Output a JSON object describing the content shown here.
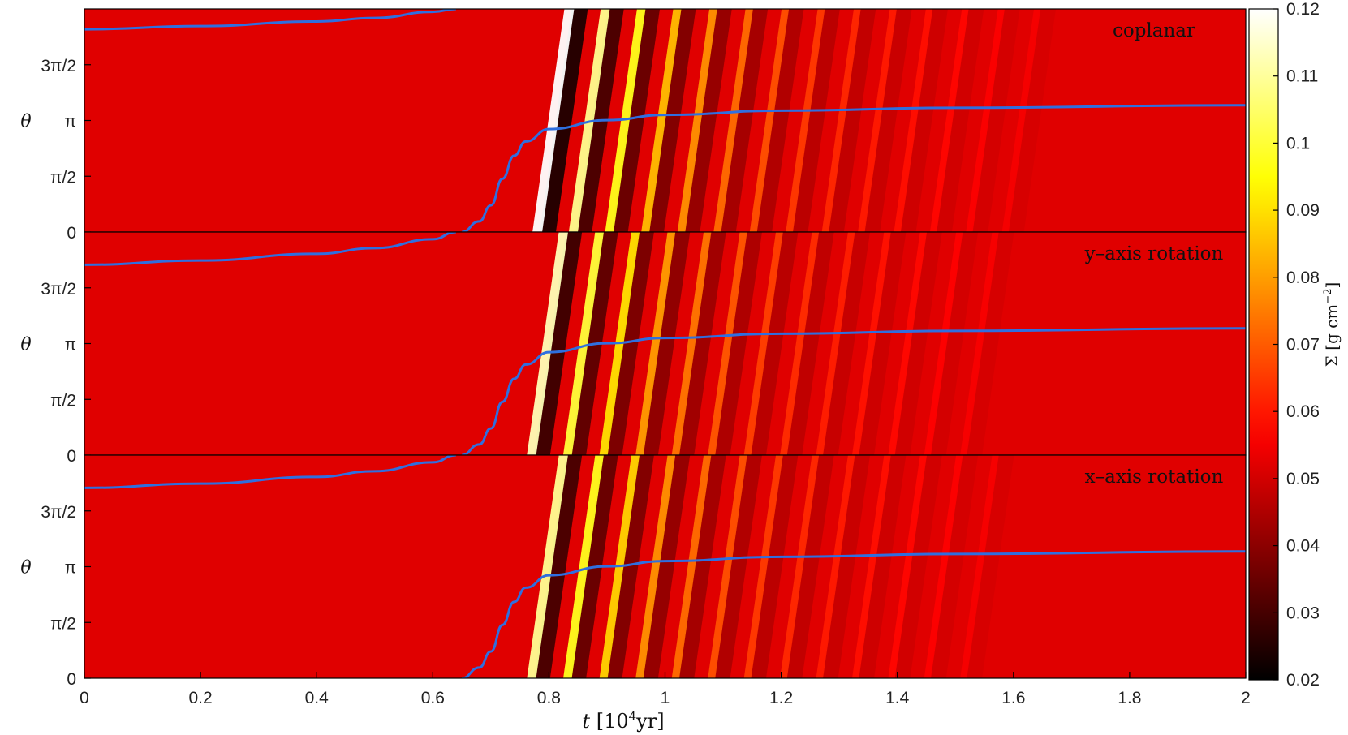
{
  "chart_data": {
    "type": "heatmap",
    "xlabel": "t [10^4 yr]",
    "xlabel_parts": {
      "var": "t",
      "open": "[10",
      "exp": "4",
      "unit": "yr]"
    },
    "ylabel": "θ",
    "x_range": [
      0,
      2
    ],
    "x_ticks": [
      0,
      0.2,
      0.4,
      0.6,
      0.8,
      1,
      1.2,
      1.4,
      1.6,
      1.8,
      2
    ],
    "x_tick_labels": [
      "0",
      "0.2",
      "0.4",
      "0.6",
      "0.8",
      "1",
      "1.2",
      "1.4",
      "1.6",
      "1.8",
      "2"
    ],
    "y_range": [
      0,
      6.2832
    ],
    "y_ticks": [
      0,
      1.5708,
      3.1416,
      4.7124
    ],
    "y_tick_labels": [
      "0",
      "π/2",
      "π",
      "3π/2"
    ],
    "colorbar": {
      "label": "Σ [g cm^-2]",
      "label_parts": {
        "sym": "Σ",
        "open": "[g cm",
        "exp": "−2",
        "close": "]"
      },
      "range": [
        0.02,
        0.12
      ],
      "ticks": [
        0.02,
        0.03,
        0.04,
        0.05,
        0.06,
        0.07,
        0.08,
        0.09,
        0.1,
        0.11,
        0.12
      ],
      "tick_labels": [
        "0.02",
        "0.03",
        "0.04",
        "0.05",
        "0.06",
        "0.07",
        "0.08",
        "0.09",
        "0.1",
        "0.11",
        "0.12"
      ],
      "colormap": "hot"
    },
    "background_sigma": 0.052,
    "curve_color": "#2f6fe0",
    "panels": [
      {
        "title": "coplanar",
        "wave_onset_t": 0.78,
        "wave_amplitude": 1.0,
        "trajectory": {
          "t": [
            0,
            0.2,
            0.4,
            0.5,
            0.6,
            0.64,
            0.65,
            0.68,
            0.7,
            0.72,
            0.74,
            0.76,
            0.8,
            0.9,
            1.0,
            1.2,
            1.5,
            2.0
          ],
          "theta": [
            5.71,
            5.8,
            5.93,
            6.03,
            6.2,
            6.283,
            0.0,
            0.3,
            0.75,
            1.5,
            2.15,
            2.55,
            2.9,
            3.15,
            3.3,
            3.42,
            3.5,
            3.57
          ]
        }
      },
      {
        "title": "y–axis rotation",
        "wave_onset_t": 0.77,
        "wave_amplitude": 0.85,
        "trajectory": {
          "t": [
            0,
            0.2,
            0.4,
            0.5,
            0.6,
            0.64,
            0.65,
            0.68,
            0.7,
            0.72,
            0.74,
            0.76,
            0.8,
            0.9,
            1.0,
            1.2,
            1.5,
            2.0
          ],
          "theta": [
            5.36,
            5.48,
            5.67,
            5.83,
            6.08,
            6.283,
            0.0,
            0.3,
            0.75,
            1.5,
            2.15,
            2.55,
            2.9,
            3.15,
            3.3,
            3.42,
            3.5,
            3.57
          ]
        }
      },
      {
        "title": "x–axis rotation",
        "wave_onset_t": 0.77,
        "wave_amplitude": 0.8,
        "trajectory": {
          "t": [
            0,
            0.2,
            0.4,
            0.5,
            0.6,
            0.64,
            0.65,
            0.68,
            0.7,
            0.72,
            0.74,
            0.76,
            0.8,
            0.9,
            1.0,
            1.2,
            1.5,
            2.0
          ],
          "theta": [
            5.36,
            5.48,
            5.67,
            5.83,
            6.08,
            6.283,
            0.0,
            0.3,
            0.75,
            1.5,
            2.15,
            2.55,
            2.9,
            3.15,
            3.3,
            3.42,
            3.5,
            3.57
          ]
        }
      }
    ]
  }
}
